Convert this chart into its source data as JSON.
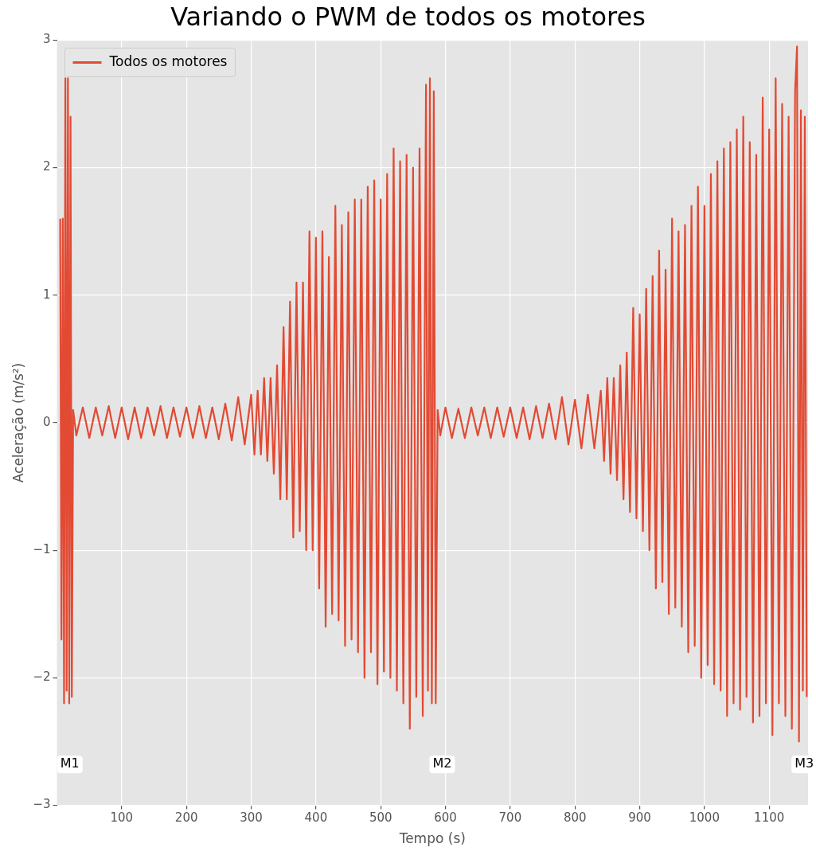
{
  "chart_data": {
    "type": "line",
    "title": "Variando o PWM de todos os motores",
    "xlabel": "Tempo (s)",
    "ylabel": "Aceleração (m/s²)",
    "xlim": [
      0,
      1160
    ],
    "xticks": [
      100,
      200,
      300,
      400,
      500,
      600,
      700,
      800,
      900,
      1000,
      1100
    ],
    "ylim": [
      -3,
      3
    ],
    "yticks": [
      -3,
      -2,
      -1,
      0,
      1,
      2,
      3
    ],
    "grid": true,
    "legend": "top left",
    "marker": "none",
    "line_style": "solid",
    "annotations": [
      {
        "text": "M1",
        "x": 20,
        "y": -2.68
      },
      {
        "text": "M2",
        "x": 595,
        "y": -2.68
      },
      {
        "text": "M3",
        "x": 1154,
        "y": -2.68
      }
    ],
    "series": [
      {
        "name": "Todos os motores",
        "color": "#e24a33",
        "x": [
          5,
          7,
          9,
          11,
          13,
          15,
          17,
          19,
          21,
          23,
          25,
          30,
          40,
          50,
          60,
          70,
          80,
          90,
          100,
          110,
          120,
          130,
          140,
          150,
          160,
          170,
          180,
          190,
          200,
          210,
          220,
          230,
          240,
          250,
          260,
          270,
          280,
          290,
          300,
          305,
          310,
          315,
          320,
          325,
          330,
          335,
          340,
          345,
          350,
          355,
          360,
          365,
          370,
          375,
          380,
          385,
          390,
          395,
          400,
          405,
          410,
          415,
          420,
          425,
          430,
          435,
          440,
          445,
          450,
          455,
          460,
          465,
          470,
          475,
          480,
          485,
          490,
          495,
          500,
          505,
          510,
          515,
          520,
          525,
          530,
          535,
          540,
          545,
          550,
          555,
          560,
          565,
          570,
          573,
          576,
          579,
          582,
          585,
          588,
          592,
          600,
          610,
          620,
          630,
          640,
          650,
          660,
          670,
          680,
          690,
          700,
          710,
          720,
          730,
          740,
          750,
          760,
          770,
          780,
          790,
          800,
          810,
          820,
          830,
          840,
          845,
          850,
          855,
          860,
          865,
          870,
          875,
          880,
          885,
          890,
          895,
          900,
          905,
          910,
          915,
          920,
          925,
          930,
          935,
          940,
          945,
          950,
          955,
          960,
          965,
          970,
          975,
          980,
          985,
          990,
          995,
          1000,
          1005,
          1010,
          1015,
          1020,
          1025,
          1030,
          1035,
          1040,
          1045,
          1050,
          1055,
          1060,
          1065,
          1070,
          1075,
          1080,
          1085,
          1090,
          1095,
          1100,
          1105,
          1110,
          1115,
          1120,
          1125,
          1130,
          1135,
          1140,
          1143,
          1146,
          1149,
          1152,
          1155,
          1158
        ],
        "values": [
          1.6,
          -1.7,
          1.6,
          -2.2,
          2.7,
          -2.1,
          2.7,
          -2.2,
          2.4,
          -2.15,
          0.1,
          -0.1,
          0.12,
          -0.12,
          0.12,
          -0.1,
          0.13,
          -0.12,
          0.12,
          -0.13,
          0.12,
          -0.12,
          0.12,
          -0.1,
          0.13,
          -0.12,
          0.12,
          -0.11,
          0.12,
          -0.12,
          0.13,
          -0.12,
          0.12,
          -0.13,
          0.15,
          -0.14,
          0.2,
          -0.17,
          0.22,
          -0.25,
          0.25,
          -0.25,
          0.35,
          -0.3,
          0.35,
          -0.4,
          0.45,
          -0.6,
          0.75,
          -0.6,
          0.95,
          -0.9,
          1.1,
          -0.85,
          1.1,
          -1.0,
          1.5,
          -1.0,
          1.45,
          -1.3,
          1.5,
          -1.6,
          1.3,
          -1.5,
          1.7,
          -1.55,
          1.55,
          -1.75,
          1.65,
          -1.7,
          1.75,
          -1.8,
          1.75,
          -2.0,
          1.85,
          -1.8,
          1.9,
          -2.05,
          1.75,
          -1.95,
          1.95,
          -2.0,
          2.15,
          -2.1,
          2.05,
          -2.2,
          2.1,
          -2.4,
          2.0,
          -2.15,
          2.15,
          -2.3,
          2.65,
          -2.1,
          2.7,
          -2.2,
          2.6,
          -2.2,
          0.1,
          -0.1,
          0.12,
          -0.12,
          0.11,
          -0.12,
          0.12,
          -0.1,
          0.12,
          -0.12,
          0.12,
          -0.11,
          0.12,
          -0.12,
          0.12,
          -0.13,
          0.13,
          -0.12,
          0.15,
          -0.13,
          0.2,
          -0.17,
          0.18,
          -0.2,
          0.22,
          -0.2,
          0.25,
          -0.3,
          0.35,
          -0.4,
          0.35,
          -0.45,
          0.45,
          -0.6,
          0.55,
          -0.7,
          0.9,
          -0.75,
          0.85,
          -0.85,
          1.05,
          -1.0,
          1.15,
          -1.3,
          1.35,
          -1.25,
          1.2,
          -1.5,
          1.6,
          -1.45,
          1.5,
          -1.6,
          1.55,
          -1.8,
          1.7,
          -1.75,
          1.85,
          -2.0,
          1.7,
          -1.9,
          1.95,
          -2.05,
          2.05,
          -2.1,
          2.15,
          -2.3,
          2.2,
          -2.2,
          2.3,
          -2.25,
          2.4,
          -2.15,
          2.2,
          -2.35,
          2.1,
          -2.3,
          2.55,
          -2.2,
          2.3,
          -2.45,
          2.7,
          -2.2,
          2.5,
          -2.3,
          2.4,
          -2.4,
          2.6,
          2.95,
          -2.5,
          2.45,
          -2.1,
          2.4,
          -2.15
        ]
      }
    ]
  }
}
